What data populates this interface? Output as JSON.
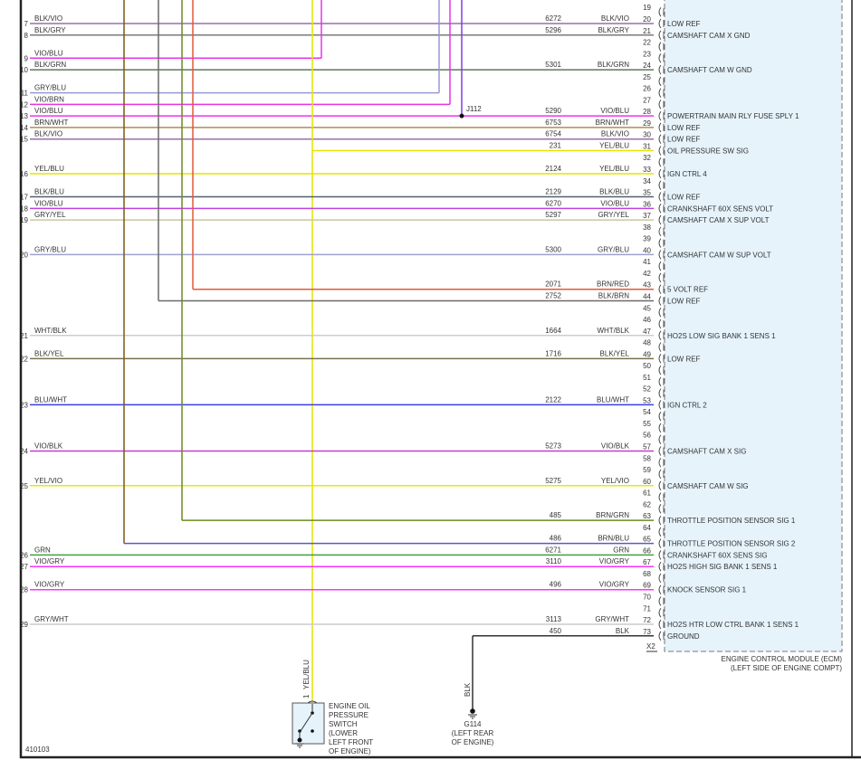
{
  "diagram_id": "410103",
  "ecm": {
    "connector": "X2",
    "caption_line1": "ENGINE CONTROL MODULE (ECM)",
    "caption_line2": "(LEFT SIDE OF ENGINE COMPT)",
    "fill": "#e6f3fb",
    "pin_first": 19,
    "pin_last": 73
  },
  "wires": [
    {
      "row": "7",
      "left_color": "BLK/VIO",
      "pin": 20,
      "circuit": "6272",
      "right_color": "BLK/VIO",
      "function": "LOW REF",
      "hex": "#9a6fa8"
    },
    {
      "row": "8",
      "left_color": "BLK/GRY",
      "pin": 21,
      "circuit": "5296",
      "right_color": "BLK/GRY",
      "function": "CAMSHAFT CAM X GND",
      "hex": "#7a7a7a"
    },
    {
      "row": "9",
      "left_color": "VIO/BLU",
      "hex": "#e832e8",
      "stub_to": "355"
    },
    {
      "row": "10",
      "left_color": "BLK/GRN",
      "pin": 24,
      "circuit": "5301",
      "right_color": "BLK/GRN",
      "function": "CAMSHAFT CAM W GND",
      "hex": "#5c7a5c"
    },
    {
      "row": "11",
      "left_color": "GRY/BLU",
      "hex": "#9898d8",
      "stub_to": "485"
    },
    {
      "row": "12",
      "left_color": "VIO/BRN",
      "hex": "#e832e8",
      "stub_to": "497"
    },
    {
      "row": "13",
      "left_color": "VIO/BLU",
      "pin": 28,
      "circuit": "5290",
      "right_color": "VIO/BLU",
      "function": "POWERTRAIN MAIN RLY FUSE SPLY 1",
      "hex": "#f030f0",
      "splice": "J112"
    },
    {
      "row": "14",
      "left_color": "BRN/WHT",
      "pin": 29,
      "circuit": "6753",
      "right_color": "BRN/WHT",
      "function": "LOW REF",
      "hex": "#b08c50"
    },
    {
      "row": "15",
      "left_color": "BLK/VIO",
      "pin": 30,
      "circuit": "6754",
      "right_color": "BLK/VIO",
      "function": "LOW REF",
      "hex": "#9a6fa8"
    },
    {
      "pin": 31,
      "circuit": "231",
      "right_color": "YEL/BLU",
      "function": "OIL PRESSURE SW SIG",
      "hex": "#e4e400",
      "vertical": "345"
    },
    {
      "row": "16",
      "left_color": "YEL/BLU",
      "pin": 33,
      "circuit": "2124",
      "right_color": "YEL/BLU",
      "function": "IGN CTRL 4",
      "hex": "#e4e400"
    },
    {
      "row": "17",
      "left_color": "BLK/BLU",
      "pin": 35,
      "circuit": "2129",
      "right_color": "BLK/BLU",
      "function": "LOW REF",
      "hex": "#556070"
    },
    {
      "row": "18",
      "left_color": "VIO/BLU",
      "pin": 36,
      "circuit": "6270",
      "right_color": "VIO/BLU",
      "function": "CRANKSHAFT 60X SENS VOLT",
      "hex": "#c040e0"
    },
    {
      "row": "19",
      "left_color": "GRY/YEL",
      "pin": 37,
      "circuit": "5297",
      "right_color": "GRY/YEL",
      "function": "CAMSHAFT CAM X SUP VOLT",
      "hex": "#c8c8a0"
    },
    {
      "row": "20",
      "left_color": "GRY/BLU",
      "pin": 40,
      "circuit": "5300",
      "right_color": "GRY/BLU",
      "function": "CAMSHAFT CAM W SUP VOLT",
      "hex": "#a0a0d0"
    },
    {
      "pin": 43,
      "circuit": "2071",
      "right_color": "BRN/RED",
      "function": "5 VOLT REF",
      "hex": "#e05a3a",
      "vertical": "213"
    },
    {
      "pin": 44,
      "circuit": "2752",
      "right_color": "BLK/BRN",
      "function": "LOW REF",
      "hex": "#6a6a6a",
      "vertical": "175"
    },
    {
      "row": "21",
      "left_color": "WHT/BLK",
      "pin": 47,
      "circuit": "1664",
      "right_color": "WHT/BLK",
      "function": "HO2S LOW SIG BANK 1 SENS 1",
      "hex": "#cccccc"
    },
    {
      "row": "22",
      "left_color": "BLK/YEL",
      "pin": 49,
      "circuit": "1716",
      "right_color": "BLK/YEL",
      "function": "LOW REF",
      "hex": "#7a7050"
    },
    {
      "row": "23",
      "left_color": "BLU/WHT",
      "pin": 53,
      "circuit": "2122",
      "right_color": "BLU/WHT",
      "function": "IGN CTRL 2",
      "hex": "#3c3ce6"
    },
    {
      "row": "24",
      "left_color": "VIO/BLK",
      "pin": 57,
      "circuit": "5273",
      "right_color": "VIO/BLK",
      "function": "CAMSHAFT CAM X SIG",
      "hex": "#c040c8"
    },
    {
      "row": "25",
      "left_color": "YEL/VIO",
      "pin": 60,
      "circuit": "5275",
      "right_color": "YEL/VIO",
      "function": "CAMSHAFT CAM W SIG",
      "hex": "#e8e800"
    },
    {
      "pin": 63,
      "circuit": "485",
      "right_color": "BRN/GRN",
      "function": "THROTTLE POSITION SENSOR SIG 1",
      "hex": "#6a8a20",
      "vertical": "201"
    },
    {
      "pin": 65,
      "circuit": "486",
      "right_color": "BRN/BLU",
      "function": "THROTTLE POSITION SENSOR SIG 2",
      "hex": "#5a5ac0",
      "vertical": "137",
      "vhex": "#7a5a10"
    },
    {
      "row": "26",
      "left_color": "GRN",
      "pin": 66,
      "circuit": "6271",
      "right_color": "GRN",
      "function": "CRANKSHAFT 60X SENS SIG",
      "hex": "#40a040"
    },
    {
      "row": "27",
      "left_color": "VIO/GRY",
      "pin": 67,
      "circuit": "3110",
      "right_color": "VIO/GRY",
      "function": "HO2S HIGH SIG BANK 1 SENS 1",
      "hex": "#ff30ff"
    },
    {
      "row": "28",
      "left_color": "VIO/GRY",
      "pin": 69,
      "circuit": "496",
      "right_color": "VIO/GRY",
      "function": "KNOCK SENSOR SIG 1",
      "hex": "#ff30ff"
    },
    {
      "row": "29",
      "left_color": "GRY/WHT",
      "pin": 72,
      "circuit": "3113",
      "right_color": "GRY/WHT",
      "function": "HO2S HTR LOW CTRL BANK 1 SENS 1",
      "hex": "#cccccc"
    },
    {
      "pin": 73,
      "circuit": "450",
      "right_color": "BLK",
      "function": "GROUND",
      "hex": "#333333",
      "to_ground": true
    }
  ],
  "switch": {
    "pin": "1",
    "wire_color": "YEL/BLU",
    "label": [
      "ENGINE OIL",
      "PRESSURE",
      "SWITCH",
      "(LOWER",
      "LEFT FRONT",
      "OF ENGINE)"
    ]
  },
  "ground": {
    "wire_color": "BLK",
    "name": "G114",
    "location": [
      "(LEFT REAR",
      "OF ENGINE)"
    ]
  }
}
